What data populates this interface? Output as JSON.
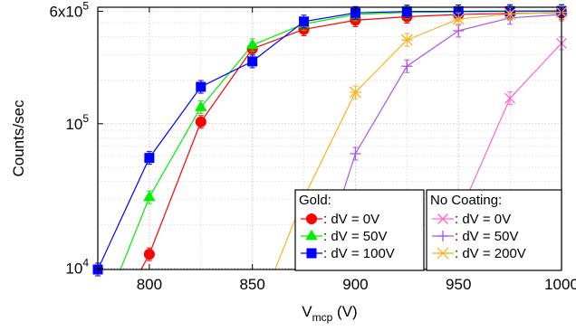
{
  "chart_data": {
    "type": "line",
    "xlabel_main": "V",
    "xlabel_sub": "mcp",
    "xlabel_unit": " (V)",
    "ylabel": "Counts/sec",
    "xlim": [
      775,
      1000
    ],
    "ylim": [
      9800,
      640000
    ],
    "yscale": "log",
    "grid": true,
    "x_ticks": [
      800,
      850,
      900,
      950,
      1000
    ],
    "x_tick_labels": [
      "800",
      "850",
      "900",
      "950",
      "1000"
    ],
    "y_tick_labels": [
      {
        "value": 600000,
        "base": "6x10",
        "exp": "5"
      },
      {
        "value": 100000,
        "base": "10",
        "exp": "5"
      },
      {
        "value": 10000,
        "base": "10",
        "exp": "4"
      }
    ],
    "legends": [
      {
        "title": "Gold:",
        "entries": [
          "1",
          "2",
          "3"
        ]
      },
      {
        "title": "No Coating:",
        "entries": [
          "4",
          "5",
          "6"
        ]
      }
    ],
    "series": [
      {
        "id": "1",
        "label": ": dV = 0V",
        "color": "#ff0000",
        "marker": "circle",
        "x": [
          800,
          825,
          850,
          875,
          900,
          925,
          950,
          975,
          1000
        ],
        "y": [
          12500,
          103000,
          330000,
          450000,
          520000,
          550000,
          570000,
          580000,
          585000
        ],
        "line_x": [
          796,
          800,
          825,
          850,
          875,
          900,
          925,
          950,
          975,
          1000
        ],
        "line_y": [
          9800,
          12500,
          103000,
          330000,
          450000,
          520000,
          550000,
          570000,
          580000,
          585000
        ]
      },
      {
        "id": "2",
        "label": ": dV = 50V",
        "color": "#00ee00",
        "marker": "triangle",
        "x": [
          800,
          825,
          850,
          875,
          900,
          925,
          950,
          975,
          1000
        ],
        "y": [
          31000,
          130000,
          350000,
          490000,
          570000,
          590000,
          595000,
          598000,
          600000
        ],
        "line_x": [
          786,
          800,
          825,
          850,
          875,
          900,
          925,
          950,
          975,
          1000
        ],
        "line_y": [
          9800,
          31000,
          130000,
          350000,
          490000,
          570000,
          590000,
          595000,
          598000,
          600000
        ]
      },
      {
        "id": "3",
        "label": ": dV = 100V",
        "color": "#0000ff",
        "marker": "square",
        "x": [
          775,
          800,
          825,
          850,
          875,
          900,
          925,
          950,
          975,
          1000
        ],
        "y": [
          9800,
          58000,
          180000,
          270000,
          510000,
          585000,
          598000,
          600000,
          602000,
          603000
        ],
        "line_x": [
          775,
          800,
          825,
          850,
          875,
          900,
          925,
          950,
          975,
          1000
        ],
        "line_y": [
          9800,
          58000,
          180000,
          270000,
          510000,
          585000,
          598000,
          600000,
          602000,
          603000
        ]
      },
      {
        "id": "4",
        "label": ": dV = 0V",
        "color": "#ff66cc",
        "marker": "x",
        "x": [
          950,
          975,
          1000
        ],
        "y": [
          23000,
          150000,
          360000
        ],
        "line_x": [
          943,
          950,
          975,
          1000
        ],
        "line_y": [
          9800,
          23000,
          150000,
          360000
        ]
      },
      {
        "id": "5",
        "label": ": dV = 50V",
        "color": "#aa55ee",
        "marker": "plus",
        "x": [
          900,
          925,
          950,
          975,
          1000
        ],
        "y": [
          62000,
          250000,
          440000,
          540000,
          570000
        ],
        "line_x": [
          882,
          900,
          925,
          950,
          975,
          1000
        ],
        "line_y": [
          9800,
          62000,
          250000,
          440000,
          540000,
          570000
        ]
      },
      {
        "id": "6",
        "label": ": dV = 200V",
        "color": "#ffb020",
        "marker": "asterisk",
        "x": [
          875,
          900,
          925,
          950,
          975,
          1000
        ],
        "y": [
          31000,
          165000,
          380000,
          530000,
          575000,
          590000
        ],
        "line_x": [
          861,
          875,
          900,
          925,
          950,
          975,
          1000
        ],
        "line_y": [
          9800,
          31000,
          165000,
          380000,
          530000,
          575000,
          590000
        ]
      }
    ]
  }
}
